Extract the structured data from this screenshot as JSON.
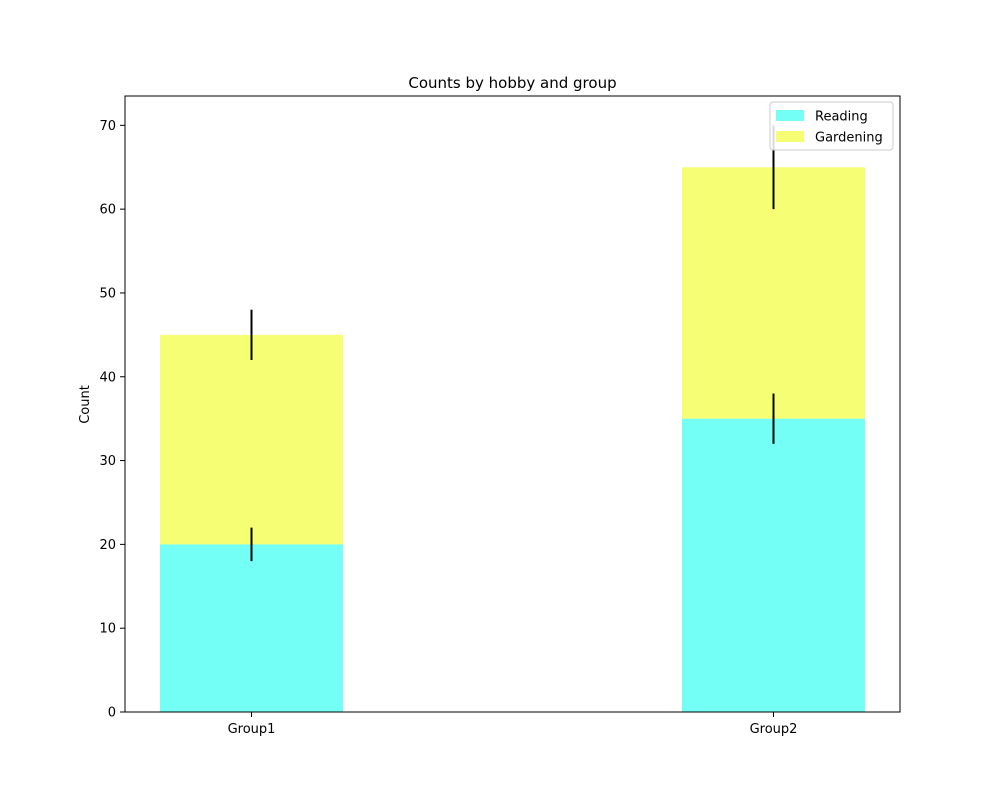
{
  "chart_data": {
    "type": "bar",
    "stacked": true,
    "title": "Counts by hobby and group",
    "xlabel": "",
    "ylabel": "Count",
    "categories": [
      "Group1",
      "Group2"
    ],
    "ylim": [
      0,
      73.5
    ],
    "yticks": [
      0,
      10,
      20,
      30,
      40,
      50,
      60,
      70
    ],
    "grid": false,
    "legend_position": "top-right",
    "series": [
      {
        "name": "Reading",
        "values": [
          20,
          35
        ],
        "errors": [
          2,
          3
        ],
        "color": "#00ffee"
      },
      {
        "name": "Gardening",
        "values": [
          25,
          30
        ],
        "errors": [
          3,
          5
        ],
        "color": "#eeff00"
      }
    ]
  }
}
